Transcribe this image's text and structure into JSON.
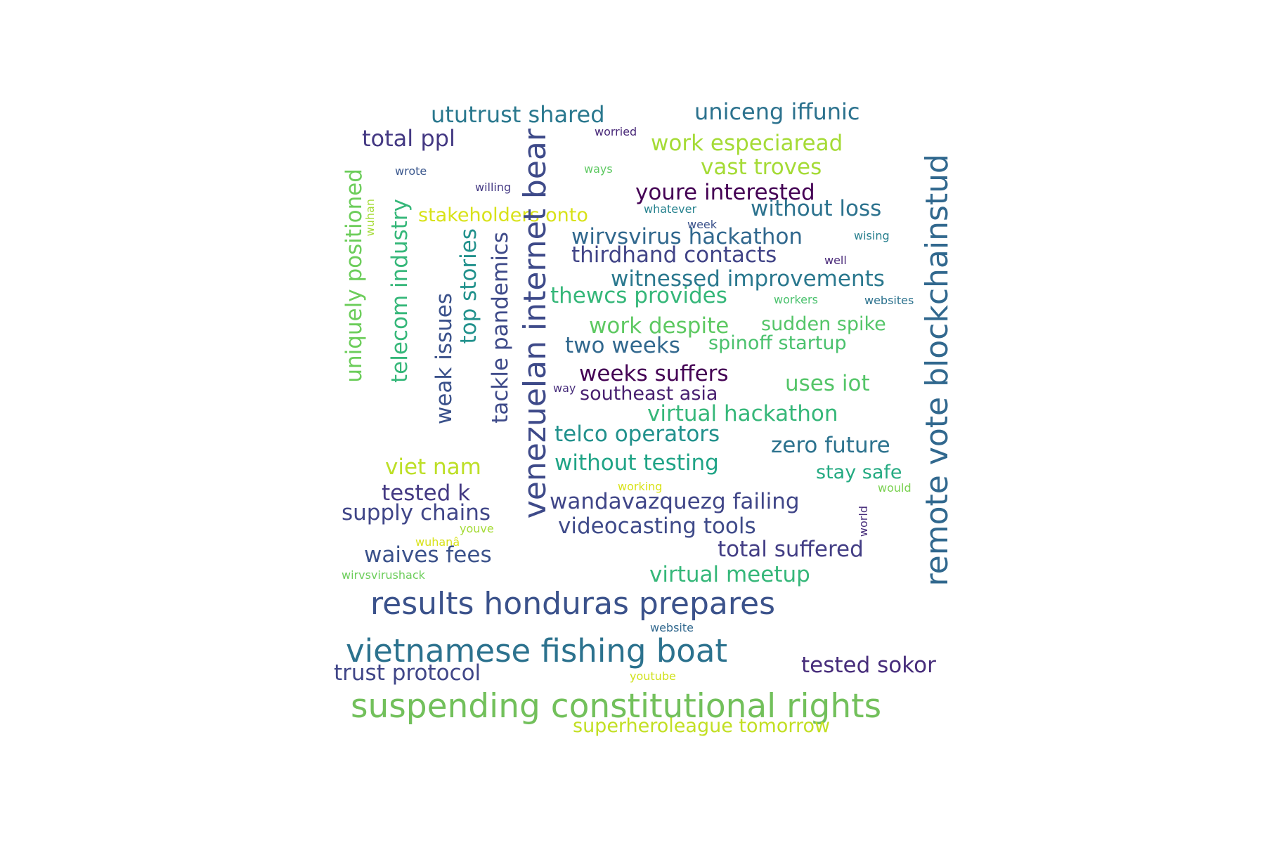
{
  "words": [
    {
      "text": "suspending constitutional rights",
      "color": "#72c05b"
    },
    {
      "text": "vietnamese fishing boat",
      "color": "#2c728e"
    },
    {
      "text": "results honduras prepares",
      "color": "#3b528b"
    },
    {
      "text": "venezuelan internet bear",
      "color": "#3e4a89"
    },
    {
      "text": "remote vote blockchainstud",
      "color": "#31688e"
    },
    {
      "text": "ututrust shared",
      "color": "#2a788e"
    },
    {
      "text": "uniceng iffunic",
      "color": "#2c728e"
    },
    {
      "text": "total ppl",
      "color": "#443983"
    },
    {
      "text": "worried",
      "color": "#482878"
    },
    {
      "text": "work especiaread",
      "color": "#a5db36"
    },
    {
      "text": "wrote",
      "color": "#39568c"
    },
    {
      "text": "ways",
      "color": "#5ec962"
    },
    {
      "text": "vast troves",
      "color": "#a5db36"
    },
    {
      "text": "willing",
      "color": "#443983"
    },
    {
      "text": "youre interested",
      "color": "#440154"
    },
    {
      "text": "stakeholders onto",
      "color": "#d8e219"
    },
    {
      "text": "whatever",
      "color": "#26828e"
    },
    {
      "text": "without loss",
      "color": "#2c728e"
    },
    {
      "text": "week",
      "color": "#3b528b"
    },
    {
      "text": "wirvsvirus hackathon",
      "color": "#31688e"
    },
    {
      "text": "wising",
      "color": "#277f8e"
    },
    {
      "text": "thirdhand contacts",
      "color": "#414487"
    },
    {
      "text": "well",
      "color": "#482878"
    },
    {
      "text": "witnessed improvements",
      "color": "#2a788e"
    },
    {
      "text": "thewcs provides",
      "color": "#35b779"
    },
    {
      "text": "workers",
      "color": "#4ac16d"
    },
    {
      "text": "websites",
      "color": "#2c728e"
    },
    {
      "text": "work despite",
      "color": "#5ec962"
    },
    {
      "text": "sudden spike",
      "color": "#54c568"
    },
    {
      "text": "two weeks",
      "color": "#31688e"
    },
    {
      "text": "spinoff startup",
      "color": "#4ac16d"
    },
    {
      "text": "weeks suffers",
      "color": "#440154"
    },
    {
      "text": "uses iot",
      "color": "#54c568"
    },
    {
      "text": "way",
      "color": "#472d7b"
    },
    {
      "text": "southeast asia",
      "color": "#481f70"
    },
    {
      "text": "virtual hackathon",
      "color": "#35b779"
    },
    {
      "text": "telco operators",
      "color": "#21918c"
    },
    {
      "text": "zero future",
      "color": "#2c728e"
    },
    {
      "text": "viet nam",
      "color": "#bddf26"
    },
    {
      "text": "without testing",
      "color": "#20a486"
    },
    {
      "text": "stay safe",
      "color": "#25ab82"
    },
    {
      "text": "tested k",
      "color": "#443983"
    },
    {
      "text": "working",
      "color": "#d8e219"
    },
    {
      "text": "would",
      "color": "#7ad151"
    },
    {
      "text": "supply chains",
      "color": "#404688"
    },
    {
      "text": "wandavazquezg failing",
      "color": "#404688"
    },
    {
      "text": "world",
      "color": "#472d7b"
    },
    {
      "text": "youve",
      "color": "#a5db36"
    },
    {
      "text": "videocasting tools",
      "color": "#3e4a89"
    },
    {
      "text": "wuhanâ",
      "color": "#d8e219"
    },
    {
      "text": "waives fees",
      "color": "#3b528b"
    },
    {
      "text": "total suffered",
      "color": "#433e85"
    },
    {
      "text": "wirvsvirushack",
      "color": "#6ccd5a"
    },
    {
      "text": "virtual meetup",
      "color": "#35b779"
    },
    {
      "text": "website",
      "color": "#31688e"
    },
    {
      "text": "trust protocol",
      "color": "#404688"
    },
    {
      "text": "tested sokor",
      "color": "#472d7b"
    },
    {
      "text": "youtube",
      "color": "#d0e11c"
    },
    {
      "text": "superheroleague tomorrow",
      "color": "#c2df23"
    },
    {
      "text": "uniquely positioned",
      "color": "#6ccd5a"
    },
    {
      "text": "wuhan",
      "color": "#a5db36"
    },
    {
      "text": "telecom industry",
      "color": "#35b779"
    },
    {
      "text": "weak issues",
      "color": "#3b528b"
    },
    {
      "text": "top stories",
      "color": "#21918c"
    },
    {
      "text": "tackle pandemics",
      "color": "#3e4a89"
    }
  ]
}
